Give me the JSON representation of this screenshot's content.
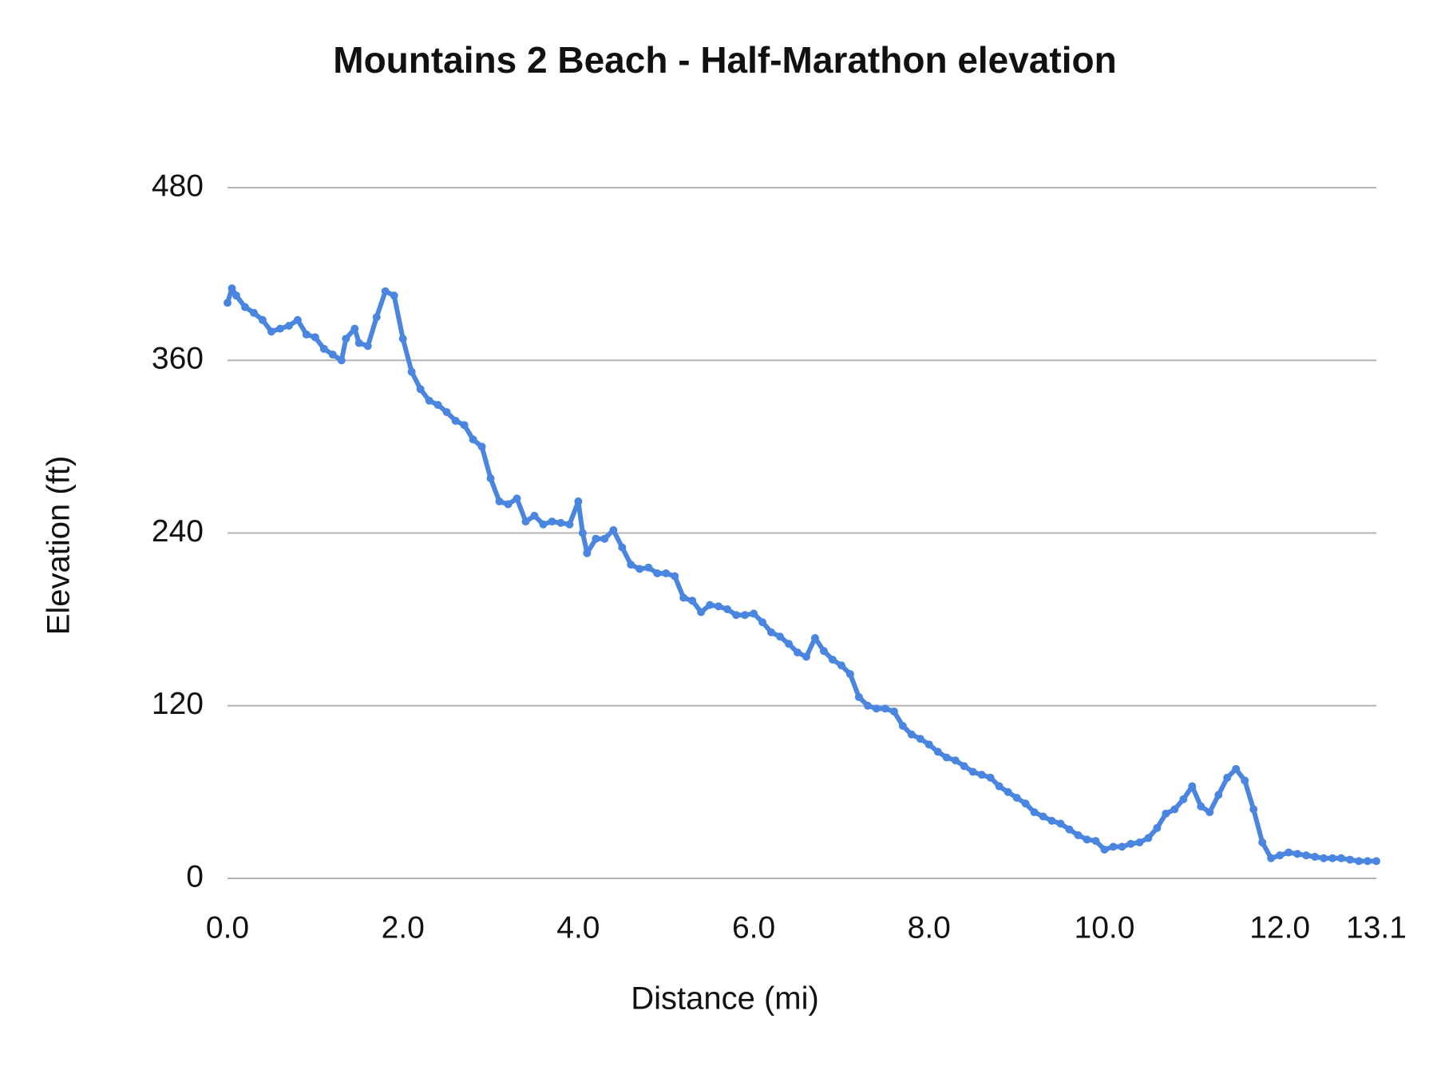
{
  "chart_data": {
    "type": "line",
    "title": "Mountains 2 Beach - Half-Marathon elevation",
    "x_label": "Distance (mi)",
    "y_label": "Elevation (ft)",
    "xlim": [
      0,
      13.1
    ],
    "ylim": [
      0,
      480
    ],
    "xticks": [
      {
        "value": 0,
        "label": "0.0"
      },
      {
        "value": 2,
        "label": "2.0"
      },
      {
        "value": 4,
        "label": "4.0"
      },
      {
        "value": 6,
        "label": "6.0"
      },
      {
        "value": 8,
        "label": "8.0"
      },
      {
        "value": 10,
        "label": "10.0"
      },
      {
        "value": 12,
        "label": "12.0"
      },
      13.1
    ],
    "yticks": [
      0,
      120,
      240,
      360,
      480
    ],
    "grid": true,
    "x": [
      0,
      0.05,
      0.1,
      0.2,
      0.3,
      0.4,
      0.5,
      0.6,
      0.7,
      0.8,
      0.9,
      1.0,
      1.1,
      1.2,
      1.3,
      1.35,
      1.45,
      1.5,
      1.6,
      1.7,
      1.8,
      1.9,
      2.0,
      2.1,
      2.2,
      2.3,
      2.4,
      2.5,
      2.6,
      2.7,
      2.8,
      2.9,
      3.0,
      3.1,
      3.2,
      3.3,
      3.4,
      3.5,
      3.6,
      3.7,
      3.8,
      3.9,
      4.0,
      4.05,
      4.1,
      4.2,
      4.3,
      4.4,
      4.5,
      4.6,
      4.7,
      4.8,
      4.9,
      5.0,
      5.1,
      5.2,
      5.3,
      5.4,
      5.5,
      5.6,
      5.7,
      5.8,
      5.9,
      6.0,
      6.1,
      6.2,
      6.3,
      6.4,
      6.5,
      6.6,
      6.7,
      6.8,
      6.9,
      7.0,
      7.1,
      7.2,
      7.3,
      7.4,
      7.5,
      7.6,
      7.7,
      7.8,
      7.9,
      8.0,
      8.1,
      8.2,
      8.3,
      8.4,
      8.5,
      8.6,
      8.7,
      8.8,
      8.9,
      9.0,
      9.1,
      9.2,
      9.3,
      9.4,
      9.5,
      9.6,
      9.7,
      9.8,
      9.9,
      10.0,
      10.1,
      10.2,
      10.3,
      10.4,
      10.5,
      10.6,
      10.7,
      10.8,
      10.9,
      11.0,
      11.1,
      11.2,
      11.3,
      11.4,
      11.5,
      11.6,
      11.7,
      11.8,
      11.9,
      12.0,
      12.1,
      12.2,
      12.3,
      12.4,
      12.5,
      12.6,
      12.7,
      12.8,
      12.9,
      13.0,
      13.1
    ],
    "series": [
      {
        "name": "Elevation",
        "color": "#4a86e0",
        "values": [
          400,
          410,
          405,
          397,
          393,
          388,
          380,
          382,
          384,
          388,
          378,
          376,
          368,
          364,
          360,
          375,
          382,
          372,
          370,
          390,
          408,
          405,
          375,
          352,
          340,
          332,
          329,
          324,
          318,
          315,
          305,
          300,
          278,
          262,
          260,
          264,
          248,
          252,
          246,
          248,
          247,
          246,
          262,
          240,
          226,
          236,
          236,
          242,
          230,
          218,
          215,
          216,
          212,
          212,
          210,
          195,
          193,
          185,
          190,
          189,
          187,
          183,
          183,
          184,
          178,
          171,
          168,
          163,
          157,
          154,
          167,
          158,
          152,
          148,
          142,
          126,
          120,
          118,
          118,
          116,
          106,
          100,
          97,
          93,
          88,
          84,
          82,
          78,
          74,
          72,
          70,
          64,
          60,
          56,
          52,
          46,
          43,
          40,
          38,
          34,
          30,
          27,
          26,
          20,
          22,
          22,
          24,
          25,
          28,
          35,
          45,
          48,
          55,
          64,
          50,
          46,
          58,
          70,
          76,
          68,
          48,
          25,
          14,
          16,
          18,
          17,
          16,
          15,
          14,
          14,
          14,
          13,
          12,
          12,
          12
        ]
      }
    ]
  }
}
